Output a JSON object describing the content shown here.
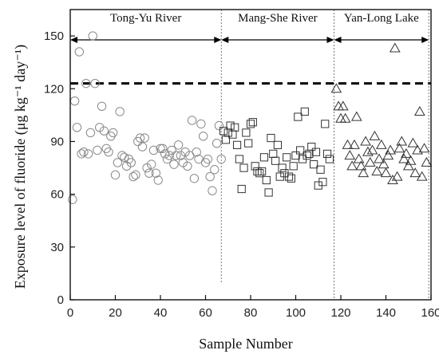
{
  "chart_data": {
    "type": "scatter",
    "xlabel": "Sample Number",
    "ylabel": "Exposure level of fluoride (μg kg⁻¹ day⁻¹)",
    "xlim": [
      0,
      160
    ],
    "ylim": [
      0,
      165
    ],
    "x_ticks": [
      0,
      20,
      40,
      60,
      80,
      100,
      120,
      140,
      160
    ],
    "y_ticks": [
      0,
      30,
      60,
      90,
      120,
      150
    ],
    "x_tick_labels": [
      "0",
      "20",
      "40",
      "60",
      "80",
      "100",
      "120",
      "140",
      "160"
    ],
    "y_tick_labels": [
      "0",
      "30",
      "60",
      "90",
      "120",
      "150"
    ],
    "grid": false,
    "reference_line": {
      "y": 123,
      "style": "dashed"
    },
    "region_dividers": [
      67,
      117,
      159
    ],
    "regions": [
      {
        "label": "Tong-Yu River",
        "from": 0,
        "to": 67
      },
      {
        "label": "Mang-She River",
        "from": 67,
        "to": 117
      },
      {
        "label": "Yan-Long Lake",
        "from": 117,
        "to": 159
      }
    ],
    "series": [
      {
        "marker": "circle",
        "points": [
          [
            1,
            57
          ],
          [
            2,
            113
          ],
          [
            3,
            98
          ],
          [
            4,
            141
          ],
          [
            5,
            83
          ],
          [
            6,
            84
          ],
          [
            7,
            123
          ],
          [
            8,
            83
          ],
          [
            9,
            95
          ],
          [
            10,
            150
          ],
          [
            11,
            123
          ],
          [
            12,
            85
          ],
          [
            13,
            98
          ],
          [
            14,
            110
          ],
          [
            15,
            96
          ],
          [
            16,
            86
          ],
          [
            17,
            84
          ],
          [
            18,
            93
          ],
          [
            19,
            95
          ],
          [
            20,
            71
          ],
          [
            21,
            78
          ],
          [
            22,
            107
          ],
          [
            23,
            82
          ],
          [
            24,
            81
          ],
          [
            25,
            76
          ],
          [
            26,
            80
          ],
          [
            27,
            78
          ],
          [
            28,
            70
          ],
          [
            29,
            71
          ],
          [
            30,
            90
          ],
          [
            31,
            92
          ],
          [
            32,
            87
          ],
          [
            33,
            92
          ],
          [
            34,
            75
          ],
          [
            35,
            72
          ],
          [
            36,
            77
          ],
          [
            37,
            85
          ],
          [
            38,
            72
          ],
          [
            39,
            68
          ],
          [
            40,
            86
          ],
          [
            41,
            86
          ],
          [
            42,
            83
          ],
          [
            43,
            80
          ],
          [
            44,
            82
          ],
          [
            45,
            85
          ],
          [
            46,
            77
          ],
          [
            47,
            82
          ],
          [
            48,
            88
          ],
          [
            49,
            82
          ],
          [
            50,
            78
          ],
          [
            51,
            84
          ],
          [
            52,
            76
          ],
          [
            53,
            82
          ],
          [
            54,
            102
          ],
          [
            55,
            69
          ],
          [
            56,
            84
          ],
          [
            57,
            80
          ],
          [
            58,
            100
          ],
          [
            59,
            93
          ],
          [
            60,
            78
          ],
          [
            61,
            80
          ],
          [
            62,
            70
          ],
          [
            63,
            62
          ],
          [
            64,
            74
          ],
          [
            65,
            89
          ],
          [
            66,
            99
          ],
          [
            67,
            80
          ]
        ]
      },
      {
        "marker": "square",
        "points": [
          [
            68,
            96
          ],
          [
            69,
            91
          ],
          [
            70,
            95
          ],
          [
            71,
            99
          ],
          [
            72,
            94
          ],
          [
            73,
            98
          ],
          [
            74,
            88
          ],
          [
            75,
            80
          ],
          [
            76,
            63
          ],
          [
            77,
            75
          ],
          [
            78,
            95
          ],
          [
            79,
            89
          ],
          [
            80,
            100
          ],
          [
            81,
            101
          ],
          [
            82,
            76
          ],
          [
            83,
            73
          ],
          [
            84,
            72
          ],
          [
            85,
            73
          ],
          [
            86,
            81
          ],
          [
            87,
            68
          ],
          [
            88,
            61
          ],
          [
            89,
            92
          ],
          [
            90,
            83
          ],
          [
            91,
            79
          ],
          [
            92,
            88
          ],
          [
            93,
            70
          ],
          [
            94,
            75
          ],
          [
            95,
            72
          ],
          [
            96,
            81
          ],
          [
            97,
            70
          ],
          [
            98,
            69
          ],
          [
            99,
            76
          ],
          [
            100,
            82
          ],
          [
            101,
            104
          ],
          [
            102,
            85
          ],
          [
            103,
            80
          ],
          [
            104,
            107
          ],
          [
            105,
            82
          ],
          [
            106,
            83
          ],
          [
            107,
            87
          ],
          [
            108,
            77
          ],
          [
            109,
            84
          ],
          [
            110,
            65
          ],
          [
            111,
            74
          ],
          [
            112,
            67
          ],
          [
            113,
            100
          ],
          [
            114,
            83
          ],
          [
            115,
            80
          ]
        ]
      },
      {
        "marker": "triangle",
        "points": [
          [
            118,
            120
          ],
          [
            119,
            110
          ],
          [
            120,
            103
          ],
          [
            121,
            110
          ],
          [
            122,
            103
          ],
          [
            123,
            88
          ],
          [
            124,
            82
          ],
          [
            125,
            76
          ],
          [
            126,
            88
          ],
          [
            127,
            104
          ],
          [
            128,
            80
          ],
          [
            129,
            76
          ],
          [
            130,
            72
          ],
          [
            131,
            90
          ],
          [
            132,
            84
          ],
          [
            133,
            78
          ],
          [
            134,
            85
          ],
          [
            135,
            93
          ],
          [
            136,
            73
          ],
          [
            137,
            80
          ],
          [
            138,
            88
          ],
          [
            139,
            77
          ],
          [
            140,
            72
          ],
          [
            141,
            82
          ],
          [
            142,
            85
          ],
          [
            143,
            68
          ],
          [
            144,
            143
          ],
          [
            145,
            70
          ],
          [
            146,
            86
          ],
          [
            147,
            90
          ],
          [
            148,
            80
          ],
          [
            149,
            83
          ],
          [
            150,
            76
          ],
          [
            151,
            79
          ],
          [
            152,
            89
          ],
          [
            153,
            72
          ],
          [
            154,
            85
          ],
          [
            155,
            107
          ],
          [
            156,
            70
          ],
          [
            157,
            86
          ],
          [
            158,
            78
          ]
        ]
      }
    ]
  }
}
